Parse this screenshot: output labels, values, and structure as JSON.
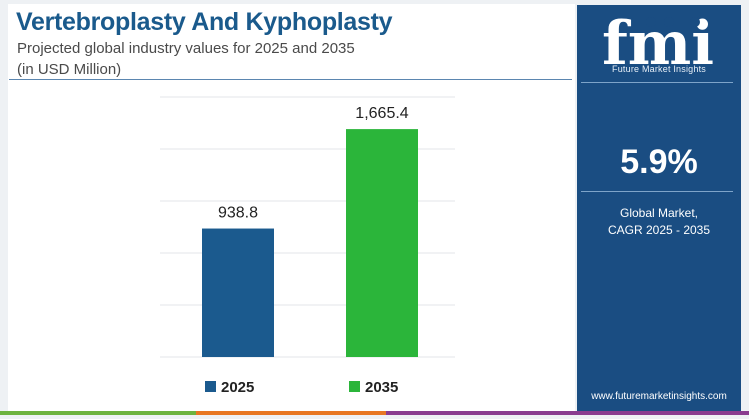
{
  "title": "Vertebroplasty And Kyphoplasty",
  "subtitle_line1": "Projected global industry values for 2025 and 2035",
  "subtitle_line2": "(in USD Million)",
  "chart_data": {
    "type": "bar",
    "categories": [
      "2025",
      "2035"
    ],
    "values": [
      938.8,
      1665.4
    ],
    "value_labels": [
      "938.8",
      "1,665.4"
    ],
    "colors": [
      "#1b5a8e",
      "#2bb53a"
    ],
    "ylim": [
      0,
      1900
    ],
    "grid": true,
    "legend": "bottom"
  },
  "sidebar": {
    "logo_text": "fmi",
    "logo_caption": "Future Market Insights",
    "cagr_value": "5.9%",
    "cagr_label_line1": "Global Market,",
    "cagr_label_line2": "CAGR 2025 - 2035",
    "website": "www.futuremarketinsights.com",
    "background_color": "#1a4d82"
  },
  "bottom_strip_colors": [
    "#6db33f",
    "#e87722",
    "#8a3c8f"
  ]
}
